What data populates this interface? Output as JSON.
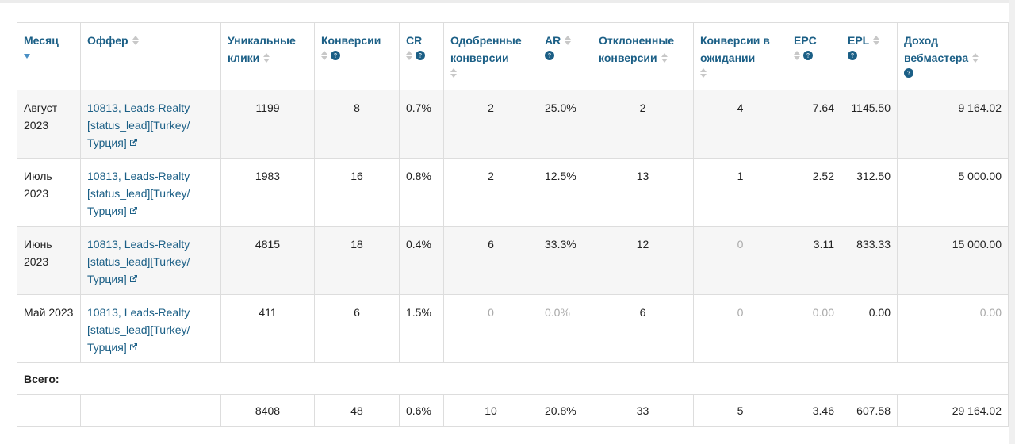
{
  "table": {
    "headers": {
      "month": "Месяц",
      "offer": "Оффер",
      "unique_clicks": "Уникальные клики",
      "conversions": "Конверсии",
      "cr": "CR",
      "approved": "Одобренные конверсии",
      "ar": "AR",
      "rejected": "Отклоненные конверсии",
      "pending": "Конверсии в ожидании",
      "epc": "EPC",
      "epl": "EPL",
      "income": "Доход вебмастера"
    },
    "rows": [
      {
        "month": "Август 2023",
        "offer": "10813, Leads-Realty [status_lead][Turkey/ Турция]",
        "unique_clicks": "1199",
        "conversions": "8",
        "cr": "0.7%",
        "approved": "2",
        "ar": "25.0%",
        "rejected": "2",
        "pending": "4",
        "epc": "7.64",
        "epl": "1145.50",
        "income": "9 164.02"
      },
      {
        "month": "Июль 2023",
        "offer": "10813, Leads-Realty [status_lead][Turkey/ Турция]",
        "unique_clicks": "1983",
        "conversions": "16",
        "cr": "0.8%",
        "approved": "2",
        "ar": "12.5%",
        "rejected": "13",
        "pending": "1",
        "epc": "2.52",
        "epl": "312.50",
        "income": "5 000.00"
      },
      {
        "month": "Июнь 2023",
        "offer": "10813, Leads-Realty [status_lead][Turkey/ Турция]",
        "unique_clicks": "4815",
        "conversions": "18",
        "cr": "0.4%",
        "approved": "6",
        "ar": "33.3%",
        "rejected": "12",
        "pending": "0",
        "epc": "3.11",
        "epl": "833.33",
        "income": "15 000.00"
      },
      {
        "month": "Май 2023",
        "offer": "10813, Leads-Realty [status_lead][Turkey/ Турция]",
        "unique_clicks": "411",
        "conversions": "6",
        "cr": "1.5%",
        "approved": "0",
        "ar": "0.0%",
        "rejected": "6",
        "pending": "0",
        "epc": "0.00",
        "epl": "0.00",
        "income": "0.00"
      }
    ],
    "total_label": "Всего:",
    "totals": {
      "month": "",
      "offer": "",
      "unique_clicks": "8408",
      "conversions": "48",
      "cr": "0.6%",
      "approved": "10",
      "ar": "20.8%",
      "rejected": "33",
      "pending": "5",
      "epc": "3.46",
      "epl": "607.58",
      "income": "29 164.02"
    }
  },
  "colors": {
    "header_text": "#1b5f86",
    "link": "#1b5f86",
    "muted_zero": "#aaaaaa",
    "row_shade": "#f6f6f6",
    "border": "#dddddd"
  },
  "icons": {
    "sort_active": "sort-desc-icon",
    "sort_idle": "sort-both-icon",
    "help": "question-circle-icon",
    "external": "external-link-icon"
  }
}
